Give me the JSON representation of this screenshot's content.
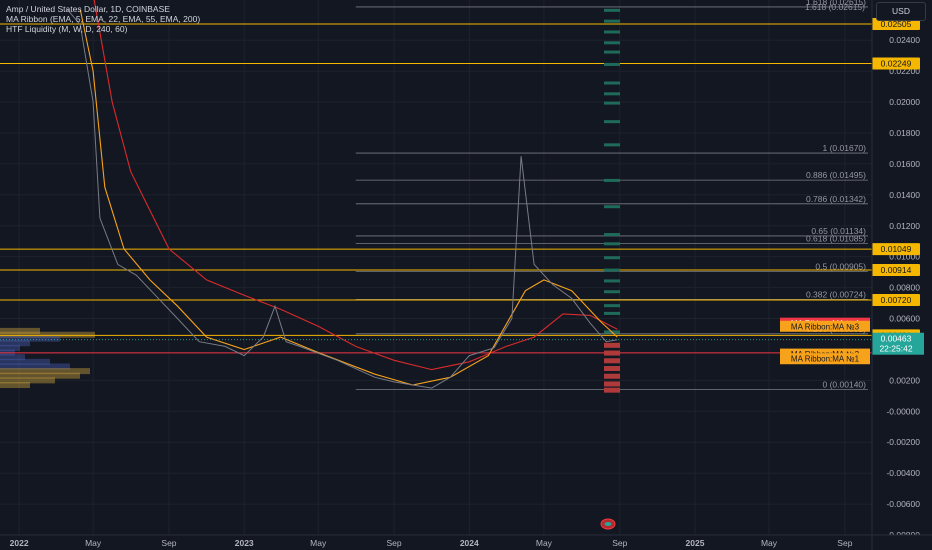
{
  "legend": {
    "title": "Amp / United States Dollar, 1D, COINBASE",
    "ribbon": "MA Ribbon (EMA, 5, EMA, 22, EMA, 55, EMA, 200)",
    "liquidity": "HTF Liquidity (M, W, D, 240, 60)"
  },
  "currency": "USD",
  "colors": {
    "background": "#131722",
    "grid": "#1e222d",
    "price_line": "#787b86",
    "level_line": "#f5b700",
    "red_line": "#f23645",
    "fib_line": "#787b86",
    "ema_fast": "#f7a21b",
    "ema_slow": "#d92b2b",
    "current_price": "#26a69a",
    "liquidity_green": "#1f6b5a",
    "liquidity_red": "#b03a3a"
  },
  "chart_data": {
    "type": "line",
    "symbol": "AMP/USD",
    "interval": "1D",
    "exchange": "COINBASE",
    "xlim": [
      "2021-12-01",
      "2025-10-15"
    ],
    "ylim": [
      -0.008,
      0.0266
    ],
    "x_ticks": [
      "2022",
      "May",
      "Sep",
      "2023",
      "May",
      "Sep",
      "2024",
      "May",
      "Sep",
      "2025",
      "May",
      "Sep"
    ],
    "x_tick_dates": [
      "2022-01-01",
      "2022-05-01",
      "2022-09-01",
      "2023-01-01",
      "2023-05-01",
      "2023-09-01",
      "2024-01-01",
      "2024-05-01",
      "2024-09-01",
      "2025-01-01",
      "2025-05-01",
      "2025-09-01"
    ],
    "y_ticks": [
      "0.02400",
      "0.02200",
      "0.02000",
      "0.01800",
      "0.01600",
      "0.01400",
      "0.01200",
      "0.01000",
      "0.00800",
      "0.00600",
      "0.00200",
      "-0.00000",
      "-0.00200",
      "-0.00400",
      "-0.00600",
      "-0.00800"
    ],
    "y_tick_values": [
      0.024,
      0.022,
      0.02,
      0.018,
      0.016,
      0.014,
      0.012,
      0.01,
      0.008,
      0.006,
      0.002,
      0.0,
      -0.002,
      -0.004,
      -0.006,
      -0.008
    ],
    "price_series": {
      "x": [
        "2022-03-20",
        "2022-04-10",
        "2022-05-01",
        "2022-05-12",
        "2022-06-10",
        "2022-07-10",
        "2022-08-10",
        "2022-09-10",
        "2022-10-20",
        "2022-12-01",
        "2023-01-01",
        "2023-02-01",
        "2023-02-20",
        "2023-03-10",
        "2023-04-01",
        "2023-06-01",
        "2023-08-01",
        "2023-09-01",
        "2023-10-01",
        "2023-11-01",
        "2023-12-01",
        "2024-01-01",
        "2024-02-10",
        "2024-03-10",
        "2024-03-25",
        "2024-04-15",
        "2024-05-15",
        "2024-06-15",
        "2024-07-15",
        "2024-08-10",
        "2024-08-28"
      ],
      "close": [
        0.026,
        0.025,
        0.02,
        0.0125,
        0.0095,
        0.0088,
        0.0075,
        0.0062,
        0.0045,
        0.0042,
        0.0036,
        0.0048,
        0.0068,
        0.0045,
        0.0042,
        0.0033,
        0.0022,
        0.0019,
        0.0017,
        0.0015,
        0.0022,
        0.0036,
        0.0041,
        0.006,
        0.0165,
        0.0095,
        0.0082,
        0.0073,
        0.0057,
        0.0045,
        0.00463
      ]
    },
    "ema_fast": {
      "x": [
        "2022-04-10",
        "2022-05-01",
        "2022-05-20",
        "2022-06-20",
        "2022-08-01",
        "2022-09-15",
        "2022-11-01",
        "2023-01-01",
        "2023-03-01",
        "2023-05-01",
        "2023-08-01",
        "2023-10-01",
        "2023-12-01",
        "2024-02-01",
        "2024-04-01",
        "2024-05-01",
        "2024-06-15",
        "2024-08-01",
        "2024-08-28"
      ],
      "y": [
        0.026,
        0.022,
        0.0145,
        0.0105,
        0.0085,
        0.0068,
        0.0048,
        0.004,
        0.0048,
        0.0038,
        0.0024,
        0.0017,
        0.0022,
        0.0036,
        0.0078,
        0.0085,
        0.0078,
        0.0058,
        0.0048
      ]
    },
    "ema_slow": {
      "x": [
        "2022-05-01",
        "2022-06-01",
        "2022-07-01",
        "2022-09-01",
        "2022-11-01",
        "2023-01-01",
        "2023-03-01",
        "2023-05-01",
        "2023-07-01",
        "2023-09-01",
        "2023-11-01",
        "2024-01-01",
        "2024-03-01",
        "2024-04-15",
        "2024-06-01",
        "2024-07-15",
        "2024-08-28"
      ],
      "y": [
        0.027,
        0.02,
        0.0155,
        0.0105,
        0.0085,
        0.0075,
        0.0066,
        0.0055,
        0.0042,
        0.0033,
        0.0027,
        0.0032,
        0.0042,
        0.0048,
        0.0063,
        0.0062,
        0.0053
      ]
    },
    "horizontal_levels": [
      {
        "value": 0.02505,
        "label": "0.02505"
      },
      {
        "value": 0.02249,
        "label": "0.02249"
      },
      {
        "value": 0.01049,
        "label": "0.01049"
      },
      {
        "value": 0.00914,
        "label": "0.00914"
      },
      {
        "value": 0.0072,
        "label": "0.00720"
      },
      {
        "value": 0.00491,
        "label": "0.00491"
      }
    ],
    "fibonacci": [
      {
        "ratio": "1.618",
        "value": 0.02615,
        "label": "1.618 (0.02615)"
      },
      {
        "ratio": "1",
        "value": 0.0167,
        "label": "1 (0.01670)"
      },
      {
        "ratio": "0.886",
        "value": 0.01495,
        "label": "0.886 (0.01495)"
      },
      {
        "ratio": "0.786",
        "value": 0.01342,
        "label": "0.786 (0.01342)"
      },
      {
        "ratio": "0.65",
        "value": 0.01134,
        "label": "0.65 (0.01134)"
      },
      {
        "ratio": "0.618",
        "value": 0.01085,
        "label": "0.618 (0.01085)"
      },
      {
        "ratio": "0.5",
        "value": 0.00905,
        "label": "0.5 (0.00905)"
      },
      {
        "ratio": "0.382",
        "value": 0.00724,
        "label": "0.382 (0.00724)"
      },
      {
        "ratio": "0.236",
        "value": 0.00501,
        "label": "0.236 (0.00501)"
      },
      {
        "ratio": "0",
        "value": 0.0014,
        "label": "0 (0.00140)"
      }
    ],
    "fib_start_date": "2023-07-01",
    "support_line": {
      "value": 0.00378,
      "color": "#f23645"
    },
    "current_price": {
      "value": 0.00463,
      "label": "0.00463",
      "countdown": "22:25:42"
    },
    "ma_labels": [
      {
        "label": "MA Ribbon:MA №4",
        "value": 0.0057,
        "color": "#f23645"
      },
      {
        "label": "MA Ribbon:MA №3",
        "value": 0.0055,
        "color": "#f7a21b"
      },
      {
        "label": "MA Ribbon:MA №2",
        "value": 0.0037,
        "color": "#f7a21b"
      },
      {
        "label": "MA Ribbon:MA №1",
        "value": 0.0034,
        "color": "#f7a21b"
      }
    ],
    "volume_profile": [
      {
        "price": 0.0052,
        "length": 40,
        "tone": "gold"
      },
      {
        "price": 0.00495,
        "length": 95,
        "tone": "gold"
      },
      {
        "price": 0.0047,
        "length": 60,
        "tone": "blue"
      },
      {
        "price": 0.0044,
        "length": 30,
        "tone": "blue"
      },
      {
        "price": 0.0041,
        "length": 20,
        "tone": "blue"
      },
      {
        "price": 0.0038,
        "length": 15,
        "tone": "blue"
      },
      {
        "price": 0.0035,
        "length": 25,
        "tone": "blue"
      },
      {
        "price": 0.0032,
        "length": 50,
        "tone": "blue"
      },
      {
        "price": 0.0029,
        "length": 70,
        "tone": "blue"
      },
      {
        "price": 0.0026,
        "length": 90,
        "tone": "gold"
      },
      {
        "price": 0.0023,
        "length": 80,
        "tone": "gold"
      },
      {
        "price": 0.002,
        "length": 55,
        "tone": "gold"
      },
      {
        "price": 0.0017,
        "length": 30,
        "tone": "gold"
      }
    ],
    "liquidity_zones": [
      {
        "price": 0.0259,
        "tone": "green"
      },
      {
        "price": 0.0252,
        "tone": "green"
      },
      {
        "price": 0.0245,
        "tone": "green"
      },
      {
        "price": 0.0238,
        "tone": "green"
      },
      {
        "price": 0.0232,
        "tone": "green"
      },
      {
        "price": 0.0224,
        "tone": "green"
      },
      {
        "price": 0.0212,
        "tone": "green"
      },
      {
        "price": 0.0205,
        "tone": "green"
      },
      {
        "price": 0.0199,
        "tone": "green"
      },
      {
        "price": 0.0187,
        "tone": "green"
      },
      {
        "price": 0.0172,
        "tone": "green"
      },
      {
        "price": 0.0149,
        "tone": "green"
      },
      {
        "price": 0.0132,
        "tone": "green"
      },
      {
        "price": 0.0114,
        "tone": "green"
      },
      {
        "price": 0.0108,
        "tone": "green"
      },
      {
        "price": 0.0099,
        "tone": "green"
      },
      {
        "price": 0.0091,
        "tone": "green"
      },
      {
        "price": 0.0084,
        "tone": "green"
      },
      {
        "price": 0.0077,
        "tone": "green"
      },
      {
        "price": 0.0068,
        "tone": "green"
      },
      {
        "price": 0.0063,
        "tone": "green"
      },
      {
        "price": 0.0051,
        "tone": "green"
      },
      {
        "price": 0.0043,
        "tone": "red"
      },
      {
        "price": 0.0038,
        "tone": "red"
      },
      {
        "price": 0.0033,
        "tone": "red"
      },
      {
        "price": 0.0028,
        "tone": "red"
      },
      {
        "price": 0.0023,
        "tone": "red"
      },
      {
        "price": 0.0018,
        "tone": "red"
      },
      {
        "price": 0.0014,
        "tone": "red"
      }
    ]
  }
}
